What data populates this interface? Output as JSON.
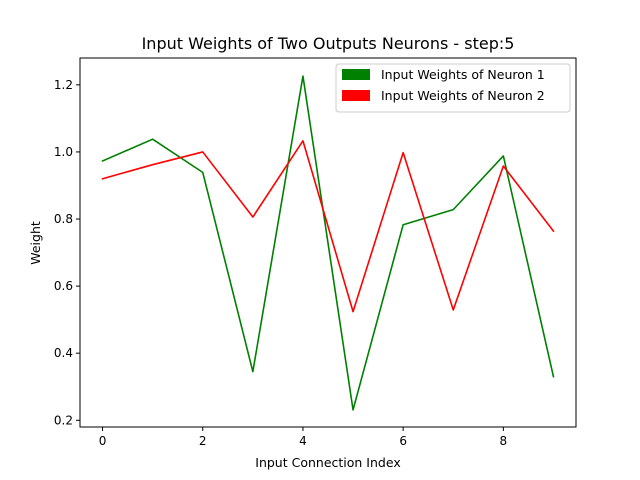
{
  "chart_data": {
    "type": "line",
    "title": "Input Weights of Two Outputs Neurons - step:5",
    "xlabel": "Input Connection Index",
    "ylabel": "Weight",
    "x": [
      0,
      1,
      2,
      3,
      4,
      5,
      6,
      7,
      8,
      9
    ],
    "xlim": [
      -0.45,
      9.45
    ],
    "ylim": [
      0.18,
      1.28
    ],
    "xticks": [
      0,
      2,
      4,
      6,
      8
    ],
    "yticks": [
      0.2,
      0.4,
      0.6,
      0.8,
      1.0,
      1.2
    ],
    "xtick_labels": [
      "0",
      "2",
      "4",
      "6",
      "8"
    ],
    "ytick_labels": [
      "0.2",
      "0.4",
      "0.6",
      "0.8",
      "1.0",
      "1.2"
    ],
    "grid": false,
    "legend_position": "top-right",
    "series": [
      {
        "name": "Input Weights of Neuron 1",
        "color": "#008000",
        "values": [
          0.973,
          1.038,
          0.939,
          0.345,
          1.226,
          0.231,
          0.783,
          0.828,
          0.988,
          0.33
        ]
      },
      {
        "name": "Input Weights of Neuron 2",
        "color": "#ff0000",
        "values": [
          0.92,
          0.962,
          1.0,
          0.806,
          1.033,
          0.524,
          0.998,
          0.529,
          0.958,
          0.764
        ]
      }
    ]
  }
}
